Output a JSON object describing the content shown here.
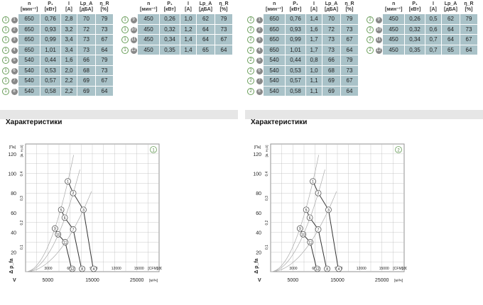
{
  "panels": [
    {
      "id": "1",
      "header": {
        "n": "n",
        "n_unit": "[мин⁻¹]",
        "p": "P₁",
        "p_unit": "[кВт]",
        "i": "I",
        "i_unit": "[A]",
        "lp": "Lp_A",
        "lp_unit": "[дБА]",
        "eta": "η_R",
        "eta_unit": "[%]"
      },
      "rows_left": [
        {
          "circ": "1",
          "dot": "1",
          "n": "650",
          "p": "0,76",
          "i": "2,8",
          "lp": "70",
          "eta": "79"
        },
        {
          "circ": "1",
          "dot": "2",
          "n": "650",
          "p": "0,93",
          "i": "3,2",
          "lp": "72",
          "eta": "73"
        },
        {
          "circ": "1",
          "dot": "3",
          "n": "650",
          "p": "0,99",
          "i": "3,4",
          "lp": "73",
          "eta": "67"
        },
        {
          "circ": "1",
          "dot": "4",
          "n": "650",
          "p": "1,01",
          "i": "3,4",
          "lp": "73",
          "eta": "64"
        },
        {
          "circ": "1",
          "dot": "5",
          "n": "540",
          "p": "0,44",
          "i": "1,6",
          "lp": "66",
          "eta": "79"
        },
        {
          "circ": "1",
          "dot": "6",
          "n": "540",
          "p": "0,53",
          "i": "2,0",
          "lp": "68",
          "eta": "73"
        },
        {
          "circ": "1",
          "dot": "7",
          "n": "540",
          "p": "0,57",
          "i": "2,2",
          "lp": "69",
          "eta": "67"
        },
        {
          "circ": "1",
          "dot": "8",
          "n": "540",
          "p": "0,58",
          "i": "2,2",
          "lp": "69",
          "eta": "64"
        }
      ],
      "rows_right": [
        {
          "circ": "1",
          "dot": "9",
          "n": "450",
          "p": "0,26",
          "i": "1,0",
          "lp": "62",
          "eta": "79"
        },
        {
          "circ": "1",
          "dot": "10",
          "n": "450",
          "p": "0,32",
          "i": "1,2",
          "lp": "64",
          "eta": "73"
        },
        {
          "circ": "1",
          "dot": "11",
          "n": "450",
          "p": "0,34",
          "i": "1,4",
          "lp": "64",
          "eta": "67"
        },
        {
          "circ": "1",
          "dot": "12",
          "n": "450",
          "p": "0,35",
          "i": "1,4",
          "lp": "65",
          "eta": "64"
        }
      ],
      "characteristics_title": "Характеристики",
      "chart_marker": "1"
    },
    {
      "id": "2",
      "header": {
        "n": "n",
        "n_unit": "[мин⁻¹]",
        "p": "P₁",
        "p_unit": "[кВт]",
        "i": "I",
        "i_unit": "[A]",
        "lp": "Lp_A",
        "lp_unit": "[дБА]",
        "eta": "η_R",
        "eta_unit": "[%]"
      },
      "rows_left": [
        {
          "circ": "2",
          "dot": "1",
          "n": "650",
          "p": "0,76",
          "i": "1,4",
          "lp": "70",
          "eta": "79"
        },
        {
          "circ": "2",
          "dot": "2",
          "n": "650",
          "p": "0,93",
          "i": "1,6",
          "lp": "72",
          "eta": "73"
        },
        {
          "circ": "2",
          "dot": "3",
          "n": "650",
          "p": "0,99",
          "i": "1,7",
          "lp": "73",
          "eta": "67"
        },
        {
          "circ": "2",
          "dot": "4",
          "n": "650",
          "p": "1,01",
          "i": "1,7",
          "lp": "73",
          "eta": "64"
        },
        {
          "circ": "2",
          "dot": "5",
          "n": "540",
          "p": "0,44",
          "i": "0,8",
          "lp": "66",
          "eta": "79"
        },
        {
          "circ": "2",
          "dot": "6",
          "n": "540",
          "p": "0,53",
          "i": "1,0",
          "lp": "68",
          "eta": "73"
        },
        {
          "circ": "2",
          "dot": "7",
          "n": "540",
          "p": "0,57",
          "i": "1,1",
          "lp": "69",
          "eta": "67"
        },
        {
          "circ": "2",
          "dot": "8",
          "n": "540",
          "p": "0,58",
          "i": "1,1",
          "lp": "69",
          "eta": "64"
        }
      ],
      "rows_right": [
        {
          "circ": "2",
          "dot": "9",
          "n": "450",
          "p": "0,26",
          "i": "0,5",
          "lp": "62",
          "eta": "79"
        },
        {
          "circ": "2",
          "dot": "10",
          "n": "450",
          "p": "0,32",
          "i": "0,6",
          "lp": "64",
          "eta": "73"
        },
        {
          "circ": "2",
          "dot": "11",
          "n": "450",
          "p": "0,34",
          "i": "0,7",
          "lp": "64",
          "eta": "67"
        },
        {
          "circ": "2",
          "dot": "12",
          "n": "450",
          "p": "0,35",
          "i": "0,7",
          "lp": "65",
          "eta": "64"
        }
      ],
      "characteristics_title": "Характеристики",
      "chart_marker": "2"
    }
  ],
  "axes": {
    "y_pa_ticks": [
      "20",
      "40",
      "60",
      "80",
      "100",
      "120"
    ],
    "y_pa_unit": "[Па]",
    "y_inwg_ticks": [
      "0,1",
      "0,2",
      "0,3",
      "0,4"
    ],
    "y_inwg_unit": "[in. H₂O]",
    "x_cfm_ticks": [
      "3000",
      "6000",
      "9000",
      "12000",
      "15000",
      "18000"
    ],
    "x_cfm_unit": "[CFM]",
    "x_m3h_ticks": [
      "5000",
      "15000",
      "25000"
    ],
    "x_m3h_unit": "[м³/ч]",
    "y_symbol": "Δ p_fa",
    "x_symbol": "V"
  },
  "chart_data": {
    "type": "line",
    "xlabel": "[м³/ч]",
    "ylabel": "[Па]",
    "xlim": [
      0,
      30000
    ],
    "ylim": [
      0,
      130
    ],
    "series": [
      {
        "name": "650",
        "values": [
          [
            9500,
            92
          ],
          [
            10700,
            80
          ],
          [
            13000,
            63
          ],
          [
            15300,
            0
          ]
        ]
      },
      {
        "name": "540",
        "values": [
          [
            8000,
            63
          ],
          [
            8800,
            55
          ],
          [
            10700,
            43
          ],
          [
            12700,
            0
          ]
        ]
      },
      {
        "name": "450",
        "values": [
          [
            6600,
            44
          ],
          [
            7300,
            38
          ],
          [
            8900,
            30
          ],
          [
            10500,
            0
          ]
        ]
      }
    ],
    "point_labels": [
      {
        "label": "1",
        "x": 9500,
        "y": 92
      },
      {
        "label": "2",
        "x": 10700,
        "y": 80
      },
      {
        "label": "3",
        "x": 13000,
        "y": 63
      },
      {
        "label": "4",
        "x": 15300,
        "y": 0
      },
      {
        "label": "5",
        "x": 8000,
        "y": 63
      },
      {
        "label": "6",
        "x": 8800,
        "y": 55
      },
      {
        "label": "7",
        "x": 10700,
        "y": 43
      },
      {
        "label": "8",
        "x": 12700,
        "y": 0
      },
      {
        "label": "9",
        "x": 6600,
        "y": 44
      },
      {
        "label": "10",
        "x": 7300,
        "y": 38
      },
      {
        "label": "11",
        "x": 8900,
        "y": 30
      },
      {
        "label": "12",
        "x": 10500,
        "y": 0
      }
    ]
  }
}
